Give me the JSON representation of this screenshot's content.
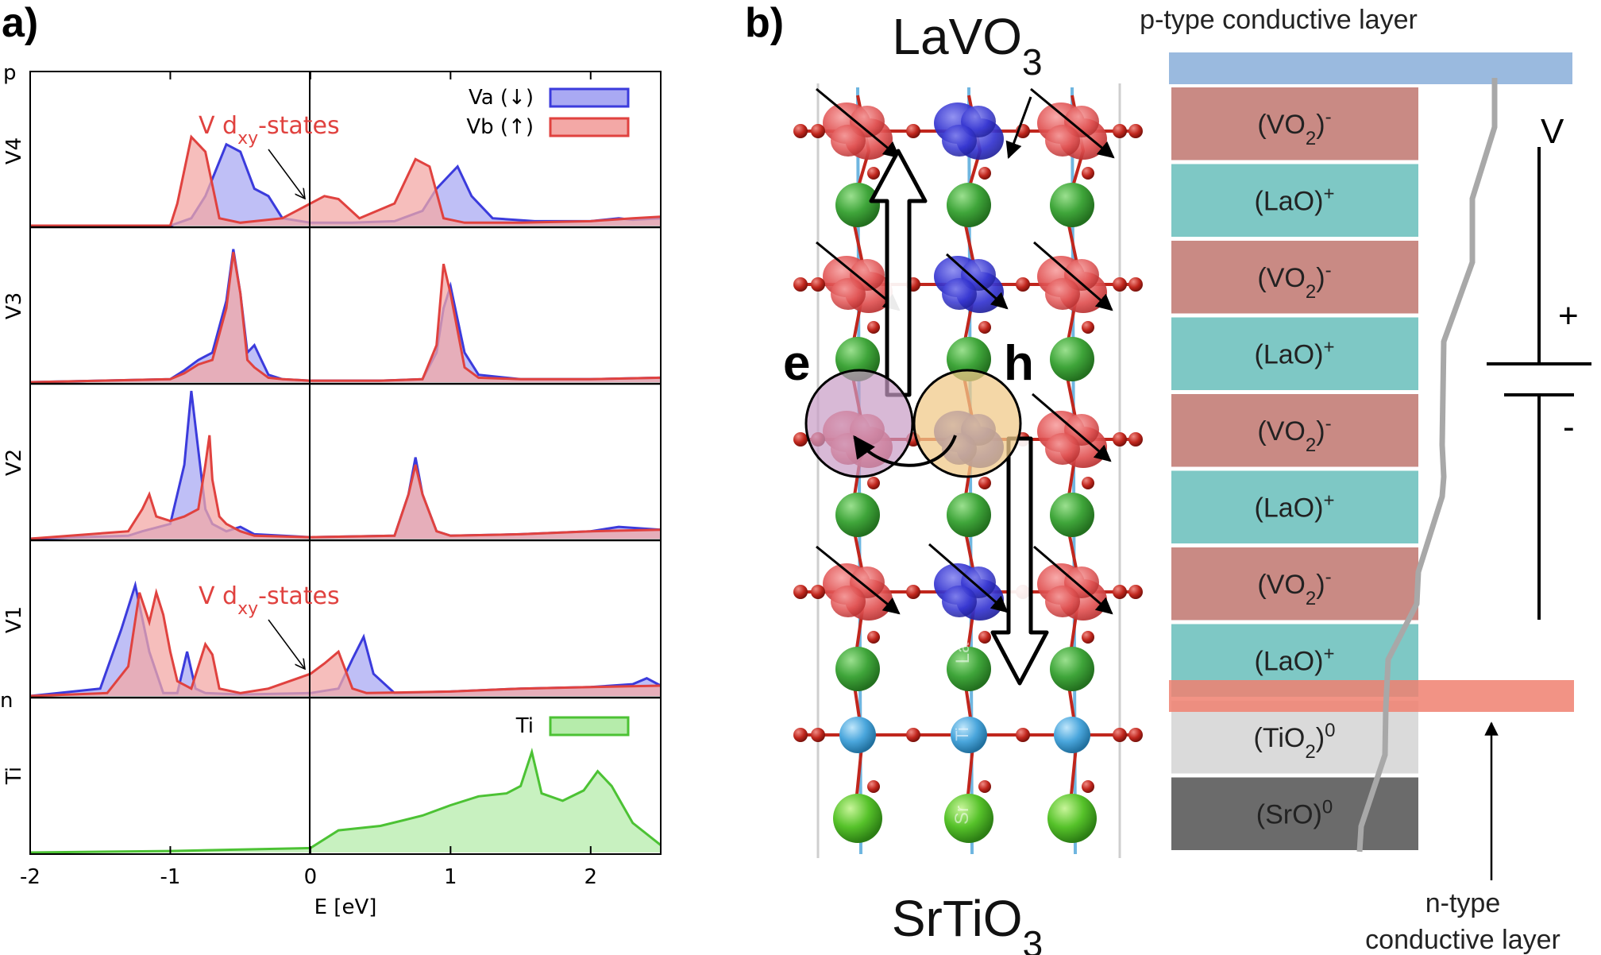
{
  "panel_a": {
    "label": "a)",
    "row_labels": [
      "V4",
      "V3",
      "V2",
      "V1",
      "Ti"
    ],
    "edge_labels": {
      "top": "p",
      "bottom": "n"
    },
    "xlabel": "E [eV]",
    "xticks": [
      "-2",
      "-1",
      "0",
      "1",
      "2"
    ],
    "legend": {
      "va": "Va (↓)",
      "vb": "Vb (↑)",
      "ti": "Ti"
    },
    "annotation_top": {
      "prefix": "V d",
      "sub": "xy",
      "suffix": "-states"
    },
    "annotation_bottom": {
      "prefix": "V d",
      "sub": "xy",
      "suffix": "-states"
    }
  },
  "chart_data": {
    "type": "area",
    "xlabel": "E [eV]",
    "xlim": [
      -2,
      2.5
    ],
    "xticks": [
      -2,
      -1,
      0,
      1,
      2
    ],
    "panels": [
      {
        "name": "V4",
        "series": [
          {
            "name": "Va (↓)",
            "color": "#3b3bdc",
            "x": [
              -2.0,
              -1.0,
              -0.85,
              -0.75,
              -0.6,
              -0.5,
              -0.4,
              -0.3,
              -0.2,
              0.0,
              0.3,
              0.6,
              0.8,
              0.9,
              1.0,
              1.05,
              1.15,
              1.3,
              1.6,
              2.0,
              2.2,
              2.3,
              2.5
            ],
            "y": [
              0,
              0,
              0.05,
              0.2,
              0.55,
              0.5,
              0.25,
              0.2,
              0.05,
              0.02,
              0.02,
              0.03,
              0.1,
              0.25,
              0.35,
              0.4,
              0.2,
              0.05,
              0.03,
              0.03,
              0.05,
              0.04,
              0.05
            ]
          },
          {
            "name": "Vb (↑)",
            "color": "#e0423f",
            "x": [
              -2.0,
              -1.0,
              -0.95,
              -0.85,
              -0.75,
              -0.65,
              -0.5,
              -0.2,
              0.1,
              0.2,
              0.35,
              0.6,
              0.75,
              0.85,
              0.95,
              1.1,
              1.5,
              2.0,
              2.3,
              2.5
            ],
            "y": [
              0,
              0,
              0.15,
              0.6,
              0.5,
              0.05,
              0.02,
              0.05,
              0.2,
              0.18,
              0.05,
              0.15,
              0.45,
              0.4,
              0.05,
              0.02,
              0.02,
              0.03,
              0.05,
              0.06
            ]
          }
        ]
      },
      {
        "name": "V3",
        "series": [
          {
            "name": "Va (↓)",
            "color": "#3b3bdc",
            "x": [
              -2.0,
              -1.0,
              -0.9,
              -0.8,
              -0.7,
              -0.6,
              -0.55,
              -0.5,
              -0.45,
              -0.4,
              -0.35,
              -0.3,
              -0.2,
              0.0,
              0.5,
              0.8,
              0.9,
              0.95,
              1.0,
              1.1,
              1.2,
              1.5,
              2.0,
              2.5
            ],
            "y": [
              0,
              0.02,
              0.08,
              0.15,
              0.2,
              0.55,
              0.9,
              0.6,
              0.2,
              0.25,
              0.15,
              0.05,
              0.02,
              0.01,
              0.01,
              0.02,
              0.2,
              0.5,
              0.65,
              0.2,
              0.05,
              0.02,
              0.02,
              0.03
            ]
          },
          {
            "name": "Vb (↑)",
            "color": "#e0423f",
            "x": [
              -2.0,
              -1.0,
              -0.9,
              -0.8,
              -0.7,
              -0.6,
              -0.55,
              -0.5,
              -0.45,
              -0.4,
              -0.3,
              -0.2,
              0.0,
              0.5,
              0.8,
              0.9,
              0.95,
              1.0,
              1.1,
              1.2,
              1.5,
              2.0,
              2.5
            ],
            "y": [
              0,
              0.02,
              0.06,
              0.12,
              0.15,
              0.5,
              0.88,
              0.6,
              0.15,
              0.1,
              0.03,
              0.02,
              0.01,
              0.01,
              0.02,
              0.25,
              0.8,
              0.6,
              0.1,
              0.03,
              0.02,
              0.02,
              0.03
            ]
          }
        ]
      },
      {
        "name": "V2",
        "series": [
          {
            "name": "Va (↓)",
            "color": "#3b3bdc",
            "x": [
              -2.0,
              -1.3,
              -1.2,
              -1.0,
              -0.9,
              -0.85,
              -0.8,
              -0.75,
              -0.7,
              -0.6,
              -0.5,
              -0.4,
              0.0,
              0.6,
              0.7,
              0.75,
              0.8,
              0.9,
              1.0,
              1.5,
              2.0,
              2.2,
              2.5
            ],
            "y": [
              0,
              0.02,
              0.05,
              0.1,
              0.5,
              1.0,
              0.6,
              0.2,
              0.1,
              0.05,
              0.08,
              0.03,
              0.01,
              0.02,
              0.3,
              0.55,
              0.3,
              0.05,
              0.02,
              0.03,
              0.05,
              0.08,
              0.06
            ]
          },
          {
            "name": "Vb (↑)",
            "color": "#e0423f",
            "x": [
              -2.0,
              -1.3,
              -1.2,
              -1.15,
              -1.1,
              -1.0,
              -0.9,
              -0.8,
              -0.75,
              -0.72,
              -0.7,
              -0.65,
              -0.6,
              -0.5,
              -0.4,
              0.0,
              0.6,
              0.7,
              0.75,
              0.8,
              0.9,
              1.0,
              1.5,
              2.0,
              2.5
            ],
            "y": [
              0,
              0.05,
              0.2,
              0.3,
              0.15,
              0.12,
              0.15,
              0.2,
              0.5,
              0.7,
              0.4,
              0.15,
              0.1,
              0.05,
              0.02,
              0.01,
              0.02,
              0.3,
              0.5,
              0.3,
              0.05,
              0.02,
              0.03,
              0.05,
              0.06
            ]
          }
        ]
      },
      {
        "name": "V1",
        "series": [
          {
            "name": "Va (↓)",
            "color": "#3b3bdc",
            "x": [
              -2.0,
              -1.5,
              -1.35,
              -1.25,
              -1.15,
              -1.05,
              -0.95,
              -0.88,
              -0.82,
              -0.75,
              -0.5,
              0.0,
              0.2,
              0.3,
              0.38,
              0.45,
              0.6,
              1.0,
              1.5,
              2.0,
              2.3,
              2.4,
              2.5
            ],
            "y": [
              0,
              0.05,
              0.45,
              0.75,
              0.3,
              0.02,
              0.02,
              0.3,
              0.05,
              0.02,
              0.01,
              0.02,
              0.05,
              0.25,
              0.4,
              0.15,
              0.02,
              0.03,
              0.05,
              0.06,
              0.08,
              0.12,
              0.07
            ]
          },
          {
            "name": "Vb (↑)",
            "color": "#e0423f",
            "x": [
              -2.0,
              -1.45,
              -1.3,
              -1.22,
              -1.15,
              -1.1,
              -1.05,
              -1.0,
              -0.95,
              -0.85,
              -0.75,
              -0.7,
              -0.65,
              -0.5,
              -0.3,
              0.0,
              0.1,
              0.2,
              0.3,
              0.4,
              1.0,
              1.5,
              2.0,
              2.5
            ],
            "y": [
              0,
              0.02,
              0.2,
              0.7,
              0.5,
              0.7,
              0.55,
              0.3,
              0.1,
              0.05,
              0.35,
              0.28,
              0.05,
              0.02,
              0.05,
              0.15,
              0.22,
              0.3,
              0.05,
              0.02,
              0.03,
              0.05,
              0.06,
              0.07
            ]
          }
        ]
      },
      {
        "name": "Ti",
        "series": [
          {
            "name": "Ti",
            "color": "#4cc234",
            "x": [
              -2.0,
              -1.0,
              -0.5,
              0.0,
              0.2,
              0.5,
              0.8,
              1.0,
              1.2,
              1.4,
              1.5,
              1.58,
              1.65,
              1.8,
              1.95,
              2.05,
              2.15,
              2.3,
              2.5
            ],
            "y": [
              0,
              0.01,
              0.02,
              0.03,
              0.15,
              0.18,
              0.25,
              0.32,
              0.38,
              0.4,
              0.45,
              0.68,
              0.4,
              0.35,
              0.42,
              0.55,
              0.45,
              0.2,
              0.05
            ]
          }
        ]
      }
    ]
  },
  "panel_b": {
    "label": "b)",
    "top_title": {
      "main": "LaVO",
      "sub": "3"
    },
    "bottom_title": {
      "main": "SrTiO",
      "sub": "3"
    },
    "electron": "e",
    "hole": "h",
    "atom_labels": {
      "la": "La",
      "ti": "Ti",
      "sr": "Sr"
    },
    "p_layer_label": "p-type conductive layer",
    "n_layer_label": {
      "line1": "n-type",
      "line2": "conductive layer"
    },
    "layers": [
      {
        "pre": "(VO",
        "sub": "2",
        "post": ")",
        "sup": "-",
        "color": "#c98a84"
      },
      {
        "pre": "(LaO)",
        "sub": "",
        "post": "",
        "sup": "+",
        "color": "#7ec8c5"
      },
      {
        "pre": "(VO",
        "sub": "2",
        "post": ")",
        "sup": "-",
        "color": "#c98a84"
      },
      {
        "pre": "(LaO)",
        "sub": "",
        "post": "",
        "sup": "+",
        "color": "#7ec8c5"
      },
      {
        "pre": "(VO",
        "sub": "2",
        "post": ")",
        "sup": "-",
        "color": "#c98a84"
      },
      {
        "pre": "(LaO)",
        "sub": "",
        "post": "",
        "sup": "+",
        "color": "#7ec8c5"
      },
      {
        "pre": "(VO",
        "sub": "2",
        "post": ")",
        "sup": "-",
        "color": "#c98a84"
      },
      {
        "pre": "(LaO)",
        "sub": "",
        "post": "",
        "sup": "+",
        "color": "#7ec8c5"
      },
      {
        "pre": "(TiO",
        "sub": "2",
        "post": ")",
        "sup": "0",
        "color": "#dadada"
      },
      {
        "pre": "(SrO)",
        "sub": "",
        "post": "",
        "sup": "0",
        "color": "#6b6b6b"
      }
    ],
    "battery": {
      "label": "V",
      "plus": "+",
      "minus": "-"
    },
    "colors": {
      "p_layer": "#8fb3dc",
      "n_layer": "#f08070",
      "potential": "#a8a8a8",
      "spin_up": "#e34b4b",
      "spin_down": "#3434d0",
      "la": "#3fa53a",
      "ti": "#4aa6dc",
      "o": "#c0261d",
      "electron": "#c79bc4",
      "hole": "#f0c98a"
    }
  }
}
